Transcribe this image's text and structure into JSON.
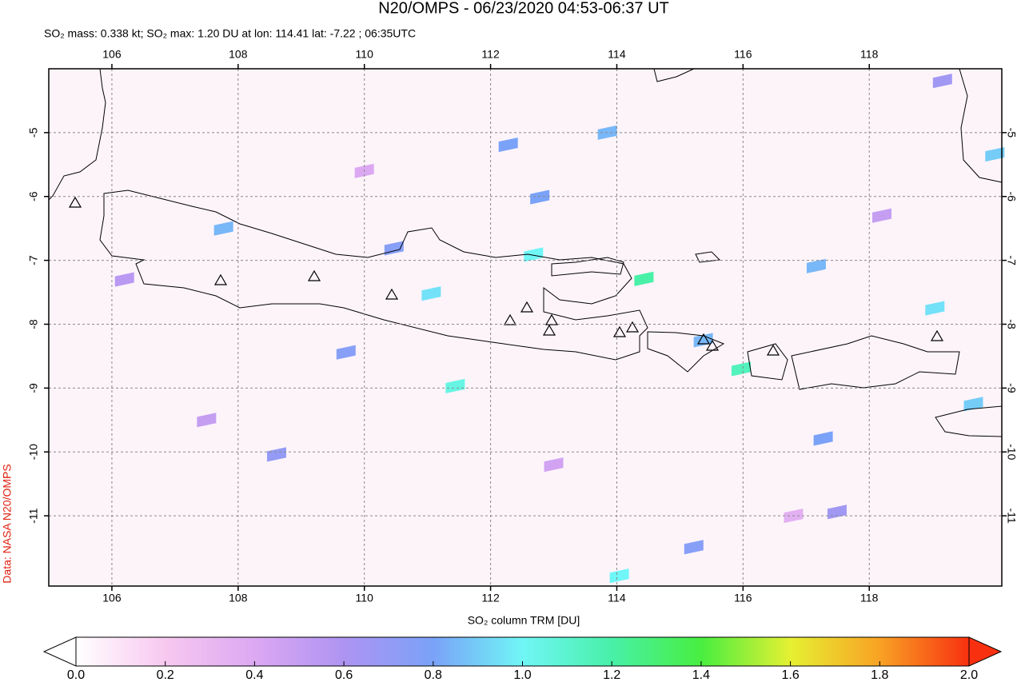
{
  "title": "N20/OMPS - 06/23/2020 04:53-06:37 UT",
  "subtitle": "SO₂ mass: 0.338 kt; SO₂ max: 1.20 DU at lon: 114.41 lat: -7.22 ; 06:35UTC",
  "credit": "Data: NASA N20/OMPS",
  "chart_data": {
    "type": "map",
    "xlim": [
      105,
      120.1
    ],
    "ylim": [
      -12.1,
      -4.0
    ],
    "xticks": [
      106,
      108,
      110,
      112,
      114,
      116,
      118
    ],
    "yticks": [
      -5,
      -6,
      -7,
      -8,
      -9,
      -10,
      -11
    ],
    "grid": true,
    "pixels": {
      "lon": [
        112.68,
        114.43,
        115.97,
        111.44,
        114.04,
        113.85,
        112.28,
        112.78,
        107.77,
        111.06,
        117.16,
        119.04,
        119.65,
        117.27,
        119.99,
        115.37,
        115.22,
        110.47,
        109.71,
        108.61,
        117.49,
        119.16,
        106.2,
        113.0,
        118.2,
        110.0,
        116.8,
        107.5
      ],
      "lat": [
        -6.91,
        -7.29,
        -8.7,
        -8.97,
        -11.94,
        -5.0,
        -5.19,
        -6.01,
        -6.5,
        -7.52,
        -7.09,
        -7.75,
        -9.25,
        -9.79,
        -5.34,
        -8.25,
        -11.49,
        -6.81,
        -8.44,
        -10.04,
        -10.94,
        -4.19,
        -7.3,
        -10.2,
        -6.3,
        -5.6,
        -11.0,
        -9.5
      ],
      "values": [
        1.0,
        1.2,
        1.15,
        1.05,
        1.0,
        0.85,
        0.8,
        0.8,
        0.85,
        0.95,
        0.85,
        0.95,
        0.9,
        0.8,
        0.9,
        0.85,
        0.75,
        0.75,
        0.75,
        0.7,
        0.65,
        0.65,
        0.55,
        0.45,
        0.5,
        0.4,
        0.35,
        0.5
      ]
    },
    "colorbar": {
      "label": "SO₂ column TRM [DU]",
      "lim": [
        0,
        2
      ],
      "ticks": [
        {
          "value": 0,
          "label": "0.0"
        },
        0.2,
        0.4,
        0.6,
        0.8,
        {
          "value": 1,
          "label": "1.0"
        },
        1.2,
        1.4,
        1.6,
        1.8,
        {
          "value": 2,
          "label": "2.0"
        }
      ],
      "colors": [
        "#ffffff",
        "#f8c8f0",
        "#dca8f2",
        "#ae94f2",
        "#7aa2f8",
        "#70f6f6",
        "#48f0a8",
        "#48ee40",
        "#e6f032",
        "#f8a224",
        "#f83010"
      ]
    }
  }
}
